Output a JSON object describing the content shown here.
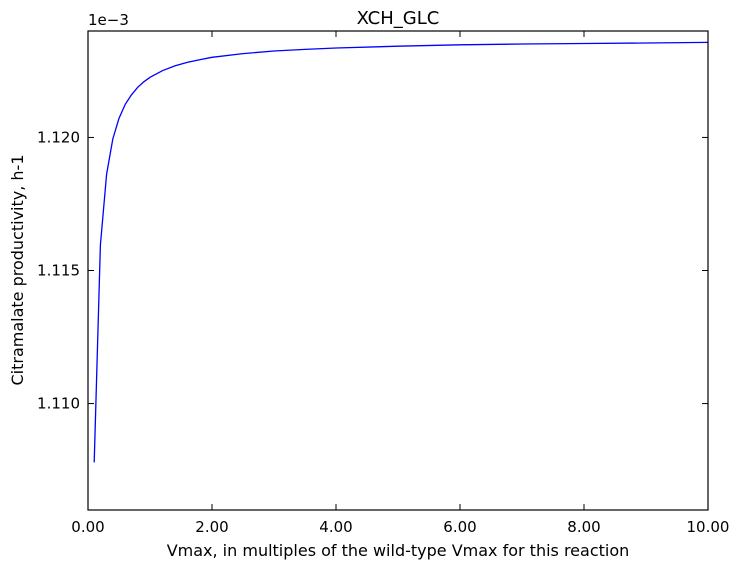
{
  "chart_data": {
    "type": "line",
    "title": "XCH_GLC",
    "xlabel": "Vmax, in multiples of the wild-type Vmax for this reaction",
    "ylabel": "Citramalate productivity, h-1",
    "y_offset_label": "1e−3",
    "xlim": [
      0,
      10
    ],
    "ylim": [
      1.106,
      1.124
    ],
    "grid": false,
    "x_ticks": [
      0,
      2,
      4,
      6,
      8,
      10
    ],
    "x_tick_labels": [
      "0.00",
      "2.00",
      "4.00",
      "6.00",
      "8.00",
      "10.00"
    ],
    "y_ticks": [
      1.11,
      1.115,
      1.12
    ],
    "y_tick_labels": [
      "1.110",
      "1.115",
      "1.120"
    ],
    "line_color": "#0000ff",
    "series": [
      {
        "x": [
          0.1,
          0.2,
          0.3,
          0.4,
          0.5,
          0.6,
          0.7,
          0.8,
          0.9,
          1.0,
          1.2,
          1.4,
          1.6,
          1.8,
          2.0,
          2.5,
          3.0,
          3.5,
          4.0,
          5.0,
          6.0,
          7.0,
          8.0,
          9.0,
          10.0
        ],
        "values": [
          1.10779,
          1.11596,
          1.11862,
          1.11994,
          1.12072,
          1.12124,
          1.1216,
          1.12188,
          1.12209,
          1.12226,
          1.12251,
          1.12269,
          1.12282,
          1.12292,
          1.12301,
          1.12315,
          1.12325,
          1.12331,
          1.12336,
          1.12343,
          1.12348,
          1.12351,
          1.12353,
          1.12355,
          1.12357
        ]
      }
    ]
  }
}
